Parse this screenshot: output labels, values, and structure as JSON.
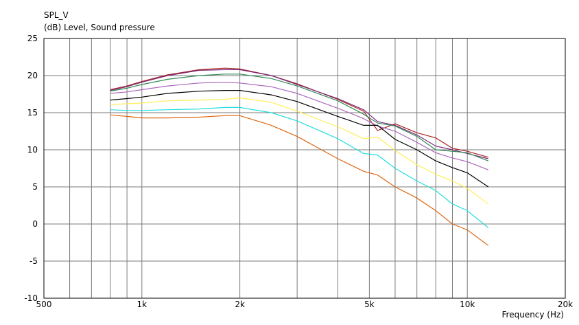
{
  "chart_data": {
    "type": "line",
    "title": "SPL_V",
    "subtitle": "(dB)  Level, Sound pressure",
    "xlabel": "Frequency  (Hz)",
    "ylabel": "",
    "x_scale": "log",
    "xlim": [
      500,
      20000
    ],
    "ylim": [
      -10,
      25
    ],
    "grid": true,
    "x_major_ticks": [
      500,
      1000,
      2000,
      5000,
      10000,
      20000
    ],
    "x_tick_labels": [
      "500",
      "1k",
      "2k",
      "5k",
      "10k",
      "20k"
    ],
    "x_minor_gridlines": [
      600,
      700,
      800,
      900,
      3000,
      4000,
      6000,
      7000,
      8000,
      9000
    ],
    "y_ticks": [
      -10,
      -5,
      0,
      5,
      10,
      15,
      20,
      25
    ],
    "y_tick_labels": [
      "-10",
      "-5",
      "0",
      "5",
      "10",
      "15",
      "20",
      "25"
    ],
    "x": [
      800,
      900,
      1000,
      1200,
      1500,
      1800,
      2000,
      2500,
      3000,
      4000,
      4800,
      5300,
      6000,
      7000,
      8000,
      9000,
      10000,
      11600
    ],
    "series": [
      {
        "color": "#aa2222",
        "values": [
          18.1,
          18.6,
          19.2,
          20.1,
          20.8,
          21.0,
          20.9,
          20.0,
          18.9,
          16.8,
          15.2,
          12.6,
          13.5,
          12.3,
          11.6,
          10.2,
          9.8,
          9.0
        ]
      },
      {
        "color": "#7a2a7a",
        "values": [
          18.0,
          18.5,
          19.1,
          20.0,
          20.7,
          20.8,
          20.8,
          20.0,
          18.8,
          16.9,
          15.4,
          13.8,
          13.3,
          12.0,
          10.5,
          10.0,
          9.5,
          8.8
        ]
      },
      {
        "color": "#2f8a55",
        "values": [
          17.9,
          18.3,
          18.8,
          19.5,
          20.0,
          20.2,
          20.2,
          19.6,
          18.6,
          16.6,
          14.8,
          13.6,
          13.2,
          11.8,
          10.0,
          9.8,
          9.6,
          8.5
        ]
      },
      {
        "color": "#aa66bb",
        "values": [
          17.6,
          17.8,
          18.1,
          18.6,
          19.0,
          19.1,
          19.0,
          18.5,
          17.6,
          15.6,
          14.2,
          13.2,
          12.5,
          11.0,
          9.6,
          8.9,
          8.4,
          7.3
        ]
      },
      {
        "color": "#000000",
        "values": [
          16.7,
          16.9,
          17.1,
          17.6,
          17.9,
          18.0,
          18.0,
          17.4,
          16.5,
          14.5,
          13.3,
          13.3,
          11.4,
          10.0,
          8.5,
          7.6,
          6.9,
          5.0
        ]
      },
      {
        "color": "#ffee55",
        "values": [
          16.1,
          16.2,
          16.3,
          16.6,
          16.7,
          16.8,
          17.0,
          16.4,
          15.2,
          13.1,
          11.5,
          11.7,
          9.9,
          8.0,
          6.7,
          5.8,
          4.8,
          2.7
        ]
      },
      {
        "color": "#22dddd",
        "values": [
          15.4,
          15.3,
          15.3,
          15.4,
          15.5,
          15.7,
          15.7,
          15.0,
          13.9,
          11.5,
          9.5,
          9.3,
          7.5,
          5.8,
          4.5,
          2.7,
          1.8,
          -0.5
        ]
      },
      {
        "color": "#dd6611",
        "values": [
          14.7,
          14.5,
          14.3,
          14.3,
          14.4,
          14.6,
          14.6,
          13.3,
          11.8,
          8.8,
          7.1,
          6.6,
          5.0,
          3.5,
          1.8,
          0.0,
          -0.8,
          -2.9
        ]
      }
    ]
  }
}
